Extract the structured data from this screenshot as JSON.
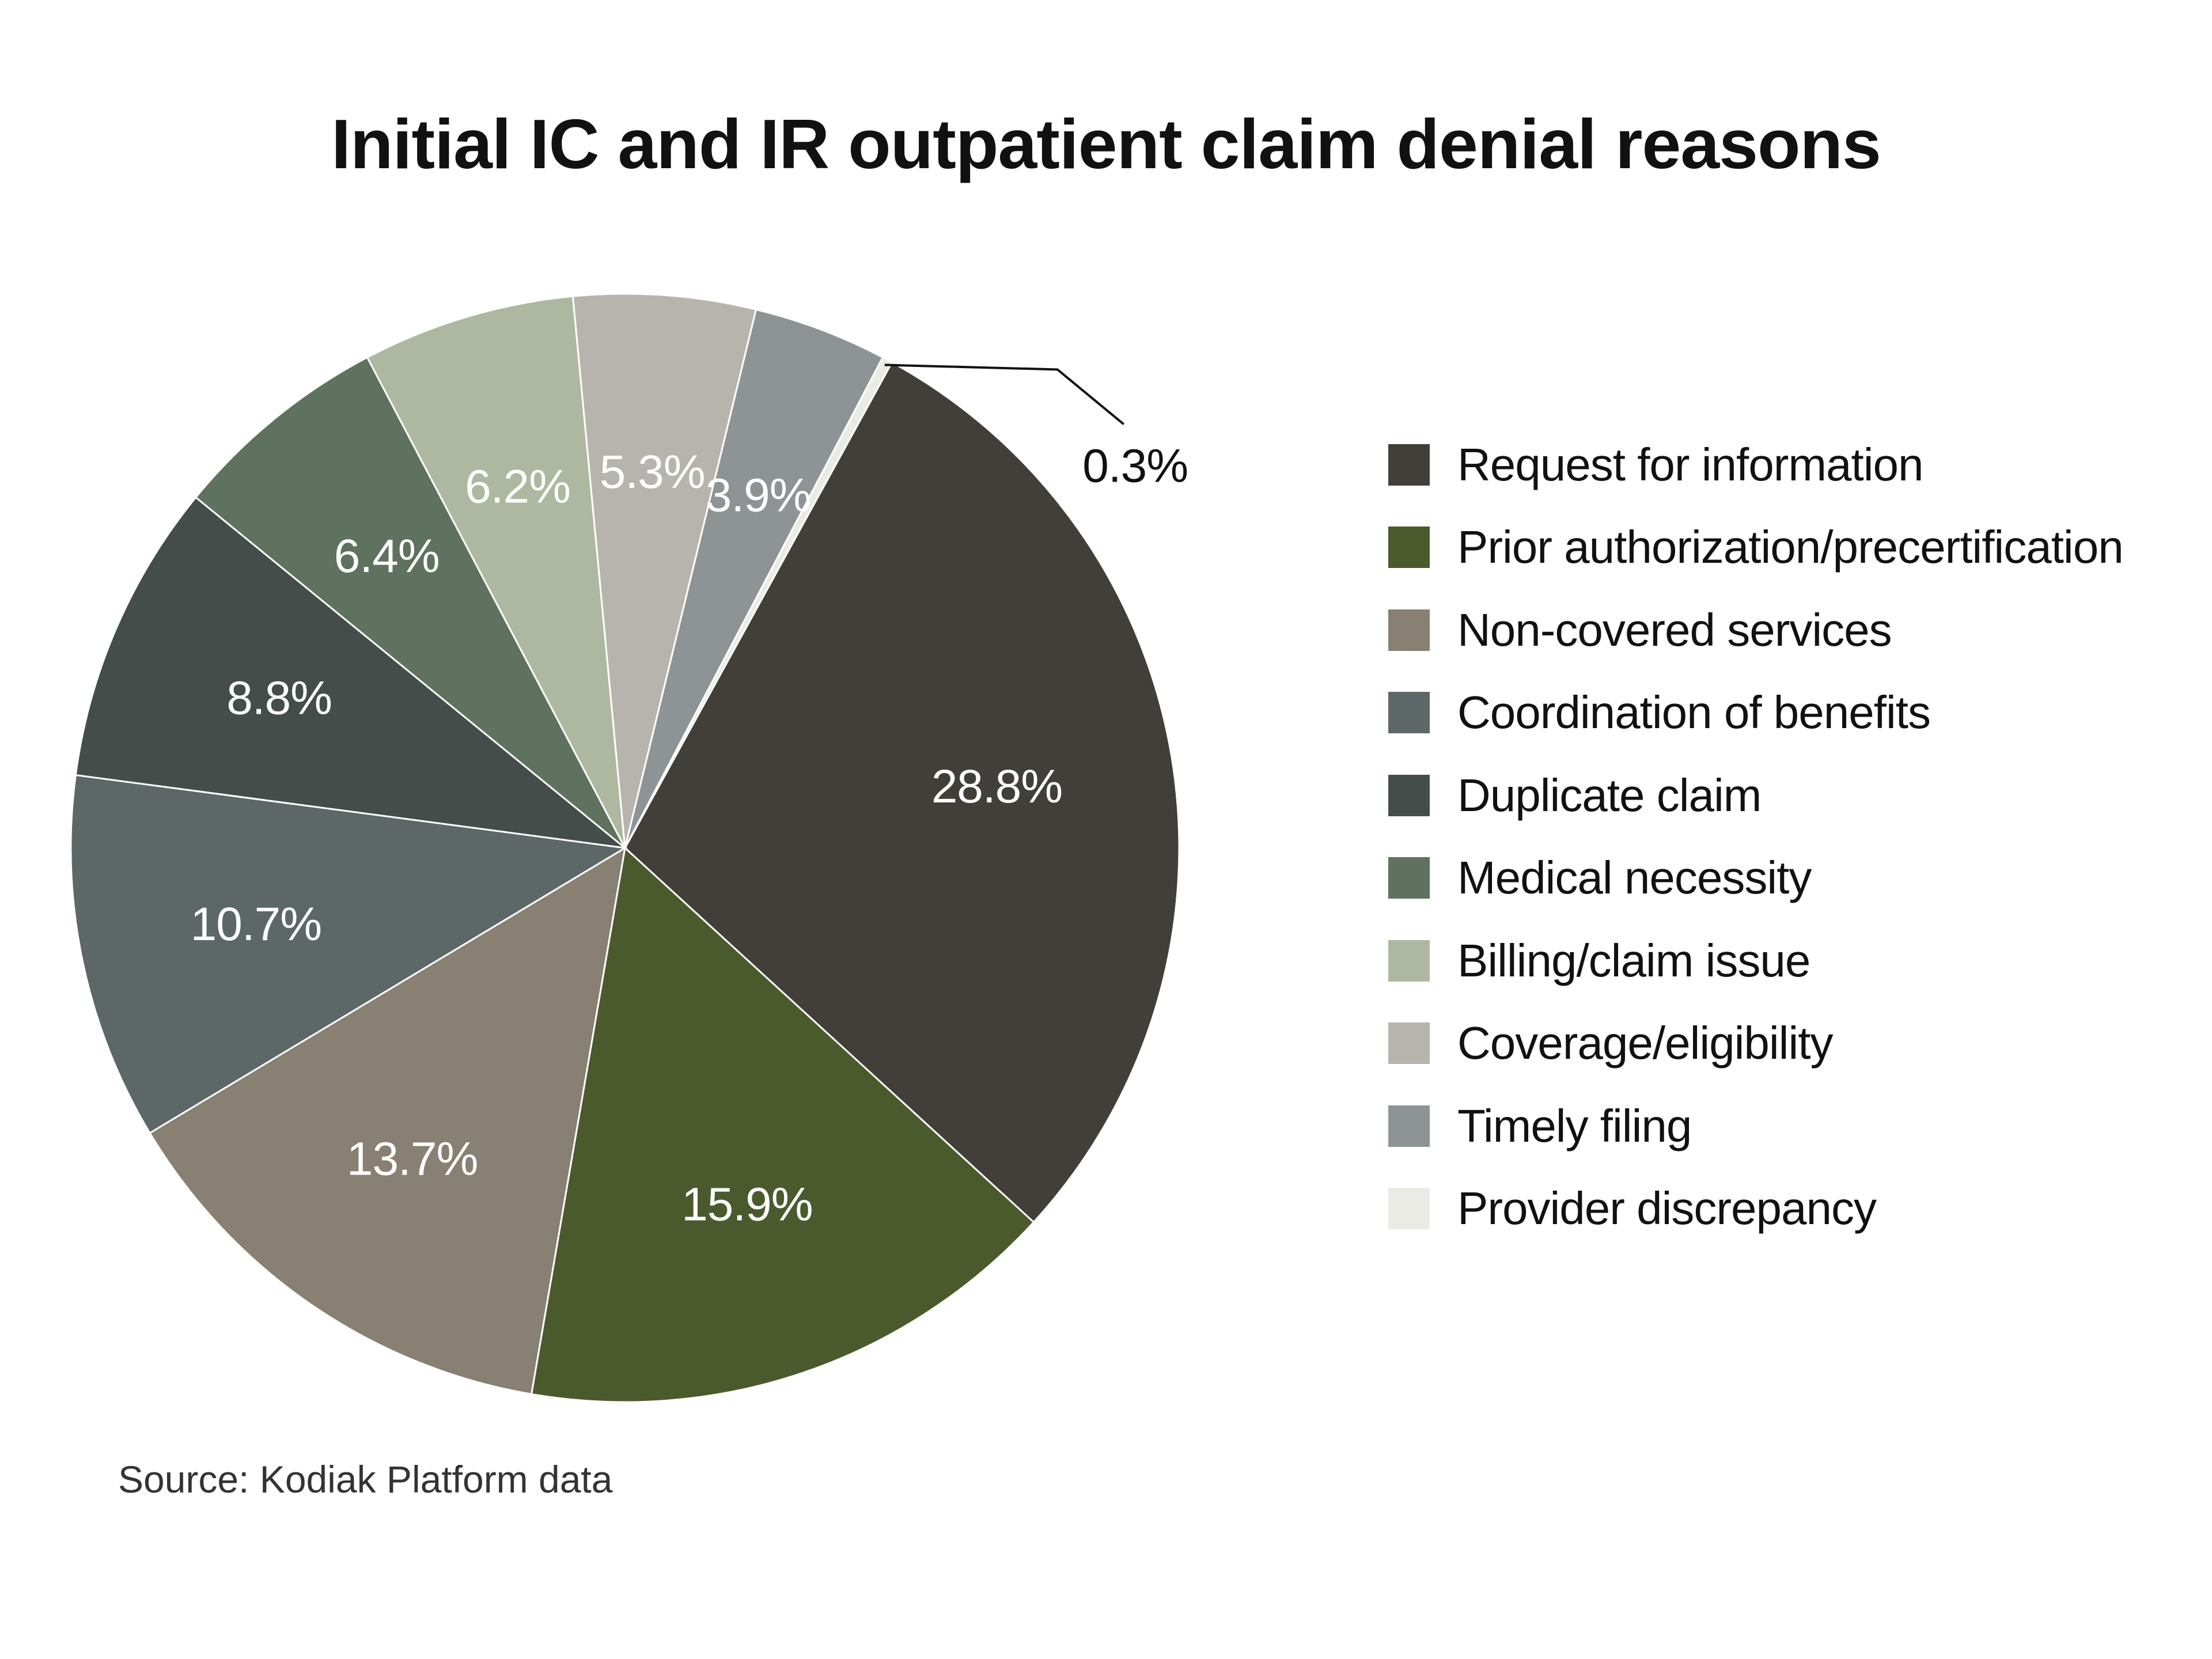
{
  "chart_data": {
    "type": "pie",
    "title": "Initial IC and IR outpatient claim denial reasons",
    "source": "Source: Kodiak Platform data",
    "legend_position": "right",
    "start_angle_deg": 28.8,
    "slices": [
      {
        "name": "Request for information",
        "value": 28.8,
        "label": "28.8%",
        "color": "#423f3a",
        "label_color": "#ffffff"
      },
      {
        "name": "Prior authorization/precertification",
        "value": 15.9,
        "label": "15.9%",
        "color": "#4a5a2d",
        "label_color": "#ffffff"
      },
      {
        "name": "Non-covered services",
        "value": 13.7,
        "label": "13.7%",
        "color": "#878073",
        "label_color": "#ffffff"
      },
      {
        "name": "Coordination of benefits",
        "value": 10.7,
        "label": "10.7%",
        "color": "#5e6767",
        "label_color": "#ffffff"
      },
      {
        "name": "Duplicate claim",
        "value": 8.8,
        "label": "8.8%",
        "color": "#444d4a",
        "label_color": "#ffffff"
      },
      {
        "name": "Medical necessity",
        "value": 6.4,
        "label": "6.4%",
        "color": "#5f715f",
        "label_color": "#ffffff"
      },
      {
        "name": "Billing/claim issue",
        "value": 6.2,
        "label": "6.2%",
        "color": "#aeb8a0",
        "label_color": "#ffffff"
      },
      {
        "name": "Coverage/eligibility",
        "value": 5.3,
        "label": "5.3%",
        "color": "#b7b4ad",
        "label_color": "#ffffff"
      },
      {
        "name": "Timely filing",
        "value": 3.9,
        "label": "3.9%",
        "color": "#8e9495",
        "label_color": "#ffffff"
      },
      {
        "name": "Provider discrepancy",
        "value": 0.3,
        "label": "0.3%",
        "color": "#e9ebe4",
        "label_color": "#111111",
        "label_outside": true
      }
    ]
  }
}
